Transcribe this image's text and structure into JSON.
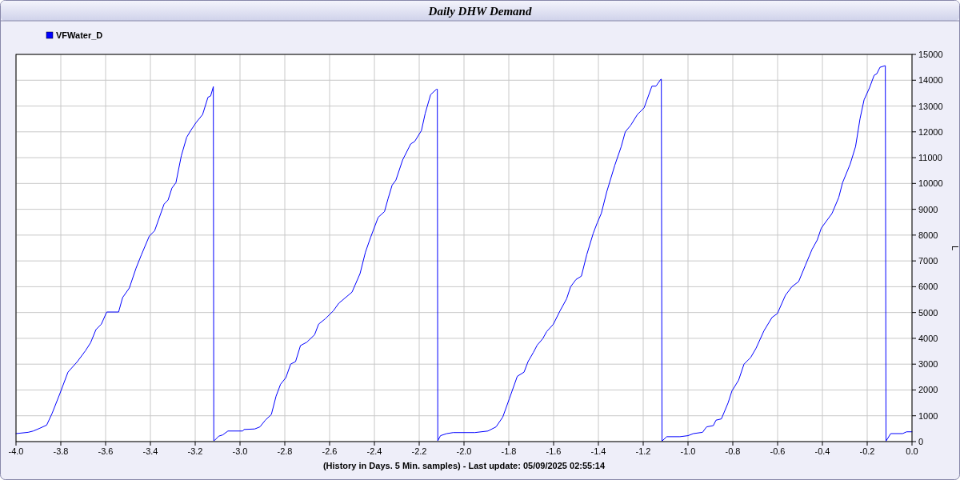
{
  "chart_data": {
    "type": "line",
    "title": "Daily DHW Demand",
    "xlabel": "(History in Days. 5 Min. samples) - Last update: 05/09/2025 02:55:14",
    "ylabel": "L",
    "xlim": [
      -4.0,
      0.0
    ],
    "xticks": [
      {
        "value": -4.0,
        "label": "-4.0"
      },
      {
        "value": -3.8,
        "label": "-3.8"
      },
      {
        "value": -3.6,
        "label": "-3.6"
      },
      {
        "value": -3.4,
        "label": "-3.4"
      },
      {
        "value": -3.2,
        "label": "-3.2"
      },
      {
        "value": -3.0,
        "label": "-3.0"
      },
      {
        "value": -2.8,
        "label": "-2.8"
      },
      {
        "value": -2.6,
        "label": "-2.6"
      },
      {
        "value": -2.4,
        "label": "-2.4"
      },
      {
        "value": -2.2,
        "label": "-2.2"
      },
      {
        "value": -2.0,
        "label": "-2.0"
      },
      {
        "value": -1.8,
        "label": "-1.8"
      },
      {
        "value": -1.6,
        "label": "-1.6"
      },
      {
        "value": -1.4,
        "label": "-1.4"
      },
      {
        "value": -1.2,
        "label": "-1.2"
      },
      {
        "value": -1.0,
        "label": "-1.0"
      },
      {
        "value": -0.8,
        "label": "-0.8"
      },
      {
        "value": -0.6,
        "label": "-0.6"
      },
      {
        "value": -0.4,
        "label": "-0.4"
      },
      {
        "value": -0.2,
        "label": "-0.2"
      },
      {
        "value": 0.0,
        "label": "0.0"
      }
    ],
    "ylim": [
      0,
      15000
    ],
    "yticks": [
      0,
      1000,
      2000,
      3000,
      4000,
      5000,
      6000,
      7000,
      8000,
      9000,
      10000,
      11000,
      12000,
      13000,
      14000,
      15000
    ],
    "grid": true,
    "legend": "top left",
    "marker": "none",
    "line_style": "solid",
    "series": [
      {
        "name": "VFWater_D",
        "color": "#0000ff",
        "x": [
          -4.0,
          -3.946,
          -3.923,
          -3.893,
          -3.863,
          -3.839,
          -3.804,
          -3.768,
          -3.726,
          -3.69,
          -3.667,
          -3.643,
          -3.619,
          -3.595,
          -3.542,
          -3.524,
          -3.494,
          -3.464,
          -3.44,
          -3.405,
          -3.381,
          -3.339,
          -3.321,
          -3.304,
          -3.286,
          -3.262,
          -3.238,
          -3.22,
          -3.196,
          -3.167,
          -3.143,
          -3.131,
          -3.119,
          -3.117,
          -3.113,
          -3.095,
          -3.077,
          -3.054,
          -2.988,
          -2.982,
          -2.934,
          -2.911,
          -2.887,
          -2.86,
          -2.839,
          -2.819,
          -2.795,
          -2.774,
          -2.752,
          -2.73,
          -2.702,
          -2.667,
          -2.649,
          -2.619,
          -2.583,
          -2.559,
          -2.5,
          -2.464,
          -2.44,
          -2.417,
          -2.383,
          -2.355,
          -2.339,
          -2.321,
          -2.304,
          -2.274,
          -2.238,
          -2.22,
          -2.19,
          -2.173,
          -2.149,
          -2.123,
          -2.119,
          -2.117,
          -2.105,
          -2.077,
          -2.048,
          -1.952,
          -1.893,
          -1.857,
          -1.827,
          -1.798,
          -1.762,
          -1.732,
          -1.714,
          -1.69,
          -1.673,
          -1.649,
          -1.631,
          -1.601,
          -1.571,
          -1.542,
          -1.524,
          -1.5,
          -1.476,
          -1.452,
          -1.423,
          -1.405,
          -1.387,
          -1.363,
          -1.327,
          -1.298,
          -1.28,
          -1.256,
          -1.226,
          -1.196,
          -1.161,
          -1.143,
          -1.121,
          -1.119,
          -1.116,
          -1.095,
          -1.036,
          -1.0,
          -0.976,
          -0.935,
          -0.917,
          -0.887,
          -0.875,
          -0.851,
          -0.821,
          -0.804,
          -0.774,
          -0.75,
          -0.72,
          -0.696,
          -0.661,
          -0.625,
          -0.601,
          -0.565,
          -0.536,
          -0.506,
          -0.476,
          -0.446,
          -0.423,
          -0.405,
          -0.357,
          -0.327,
          -0.31,
          -0.276,
          -0.252,
          -0.232,
          -0.214,
          -0.19,
          -0.169,
          -0.157,
          -0.143,
          -0.121,
          -0.119,
          -0.116,
          -0.095,
          -0.042,
          -0.024,
          0.0
        ],
        "values": [
          310,
          360,
          410,
          520,
          640,
          1090,
          1860,
          2690,
          3100,
          3520,
          3830,
          4340,
          4550,
          5020,
          5020,
          5580,
          5950,
          6720,
          7240,
          7960,
          8170,
          9200,
          9360,
          9820,
          10030,
          11070,
          11790,
          12050,
          12360,
          12670,
          13340,
          13390,
          13750,
          30,
          50,
          210,
          260,
          410,
          410,
          470,
          490,
          570,
          830,
          1050,
          1760,
          2220,
          2480,
          3000,
          3100,
          3720,
          3850,
          4140,
          4550,
          4760,
          5070,
          5360,
          5790,
          6510,
          7340,
          7910,
          8690,
          8910,
          9410,
          9930,
          10130,
          10910,
          11530,
          11630,
          12050,
          12720,
          13440,
          13650,
          13650,
          30,
          230,
          310,
          350,
          350,
          410,
          570,
          950,
          1650,
          2530,
          2690,
          3100,
          3460,
          3740,
          3980,
          4260,
          4550,
          5070,
          5530,
          6000,
          6280,
          6410,
          7240,
          8070,
          8480,
          8840,
          9670,
          10700,
          11430,
          12000,
          12250,
          12670,
          12930,
          13770,
          13770,
          14040,
          14040,
          20,
          190,
          190,
          230,
          310,
          360,
          570,
          620,
          830,
          880,
          1500,
          1960,
          2380,
          3000,
          3260,
          3620,
          4290,
          4810,
          4960,
          5670,
          6000,
          6200,
          6830,
          7450,
          7810,
          8270,
          8840,
          9460,
          10030,
          10750,
          11430,
          12510,
          13240,
          13700,
          14190,
          14250,
          14500,
          14560,
          14560,
          20,
          310,
          310,
          380,
          380
        ]
      }
    ]
  }
}
